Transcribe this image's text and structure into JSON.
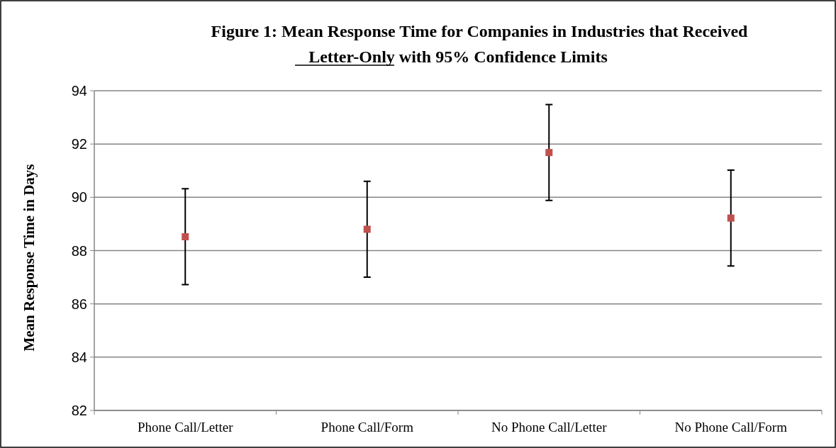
{
  "chart_data": {
    "type": "scatter",
    "title": "Figure 1: Mean Response Time for Companies in Industries that Received",
    "subtitle": "Letter-Only  with 95% Confidence Limits",
    "ylabel": "Mean Response Time in Days",
    "categories": [
      "Phone Call/Letter",
      "Phone Call/Form",
      "No Phone Call/Letter",
      "No Phone Call/Form"
    ],
    "series": [
      {
        "color": "#c0504d",
        "marker": "square",
        "values": [
          88.52,
          88.8,
          91.68,
          89.22
        ],
        "errors": [
          1.8,
          1.8,
          1.8,
          1.8
        ]
      }
    ],
    "ylim": [
      82,
      94
    ],
    "yticks": [
      82,
      84,
      86,
      88,
      90,
      92,
      94
    ],
    "grid": "y"
  }
}
